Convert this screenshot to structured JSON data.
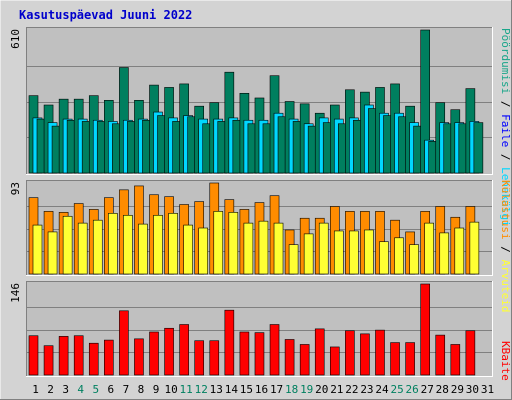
{
  "title": "Kasutuspäevad Juuni 2022",
  "colors": {
    "background": "#d3d3d3",
    "plot_bg": "#c0c0c0",
    "title": "#0000cc",
    "pages": "#007f5f",
    "files": "#00d7ff",
    "hits": "#1aa68a",
    "visits": "#ff8c00",
    "sites": "#ffff33",
    "kbytes": "#ff0000",
    "weekend_label": "#008060",
    "grid": "#808080"
  },
  "side_labels": {
    "top": {
      "hits": "Pöördumisi",
      "sep1": " / ",
      "files": "Faile",
      "sep2": " / ",
      "pages": "Lehekülgi"
    },
    "middle": {
      "visits": "Külastusi",
      "sep1": " / ",
      "sites": "Arvuteid"
    },
    "bottom": {
      "kbytes": "KBaite"
    }
  },
  "chart_data": [
    {
      "type": "bar",
      "panel": "top",
      "ymax_label": "610",
      "ylim": [
        0,
        610
      ],
      "grid": true,
      "categories": [
        "1",
        "2",
        "3",
        "4",
        "5",
        "6",
        "7",
        "8",
        "9",
        "10",
        "11",
        "12",
        "13",
        "14",
        "15",
        "16",
        "17",
        "18",
        "19",
        "20",
        "21",
        "22",
        "23",
        "24",
        "25",
        "26",
        "27",
        "28",
        "29",
        "30",
        "31"
      ],
      "series": [
        {
          "name": "Pöördumisi",
          "color_key": "pages",
          "values": [
            330,
            290,
            315,
            315,
            330,
            310,
            450,
            310,
            375,
            365,
            380,
            285,
            300,
            430,
            340,
            320,
            415,
            305,
            295,
            255,
            290,
            355,
            345,
            365,
            380,
            285,
            610,
            300,
            270,
            360,
            null
          ]
        },
        {
          "name": "Faile",
          "color_key": "files",
          "values": [
            235,
            215,
            230,
            230,
            225,
            220,
            225,
            230,
            260,
            235,
            245,
            230,
            230,
            235,
            225,
            225,
            255,
            230,
            210,
            235,
            230,
            235,
            290,
            255,
            255,
            215,
            140,
            215,
            215,
            220,
            null
          ]
        },
        {
          "name": "Lehekülgi",
          "color_key": "pages",
          "values": [
            230,
            200,
            225,
            220,
            220,
            210,
            220,
            225,
            245,
            220,
            240,
            210,
            220,
            225,
            210,
            210,
            240,
            220,
            200,
            215,
            210,
            225,
            275,
            245,
            240,
            200,
            135,
            210,
            210,
            215,
            null
          ]
        }
      ]
    },
    {
      "type": "bar",
      "panel": "middle",
      "ymax_label": "93",
      "ylim": [
        0,
        93
      ],
      "grid": true,
      "categories": [
        "1",
        "2",
        "3",
        "4",
        "5",
        "6",
        "7",
        "8",
        "9",
        "10",
        "11",
        "12",
        "13",
        "14",
        "15",
        "16",
        "17",
        "18",
        "19",
        "20",
        "21",
        "22",
        "23",
        "24",
        "25",
        "26",
        "27",
        "28",
        "29",
        "30",
        "31"
      ],
      "series": [
        {
          "name": "Külastusi",
          "color_key": "visits",
          "values": [
            78,
            64,
            63,
            72,
            66,
            78,
            86,
            90,
            81,
            79,
            71,
            74,
            93,
            76,
            66,
            73,
            80,
            45,
            57,
            57,
            69,
            64,
            64,
            64,
            55,
            43,
            64,
            69,
            58,
            69,
            null
          ]
        },
        {
          "name": "Arvuteid",
          "color_key": "sites",
          "values": [
            50,
            43,
            59,
            52,
            55,
            62,
            60,
            51,
            60,
            62,
            50,
            47,
            64,
            63,
            52,
            54,
            52,
            30,
            41,
            52,
            44,
            44,
            45,
            33,
            37,
            30,
            52,
            42,
            47,
            53,
            null
          ]
        }
      ]
    },
    {
      "type": "bar",
      "panel": "bottom",
      "ymax_label": "146",
      "ylim": [
        0,
        146
      ],
      "grid": true,
      "categories": [
        "1",
        "2",
        "3",
        "4",
        "5",
        "6",
        "7",
        "8",
        "9",
        "10",
        "11",
        "12",
        "13",
        "14",
        "15",
        "16",
        "17",
        "18",
        "19",
        "20",
        "21",
        "22",
        "23",
        "24",
        "25",
        "26",
        "27",
        "28",
        "29",
        "30",
        "31"
      ],
      "series": [
        {
          "name": "KBaite",
          "color_key": "kbytes",
          "values": [
            63,
            47,
            62,
            63,
            51,
            56,
            103,
            58,
            69,
            75,
            81,
            55,
            55,
            104,
            69,
            68,
            81,
            57,
            49,
            74,
            45,
            71,
            66,
            72,
            52,
            52,
            146,
            64,
            49,
            71,
            null
          ]
        }
      ]
    }
  ],
  "x_labels": [
    "1",
    "2",
    "3",
    "4",
    "5",
    "6",
    "7",
    "8",
    "9",
    "10",
    "11",
    "12",
    "13",
    "14",
    "15",
    "16",
    "17",
    "18",
    "19",
    "20",
    "21",
    "22",
    "23",
    "24",
    "25",
    "26",
    "27",
    "28",
    "29",
    "30",
    "31"
  ],
  "weekend_days": [
    "4",
    "5",
    "11",
    "12",
    "18",
    "19",
    "25",
    "26"
  ]
}
